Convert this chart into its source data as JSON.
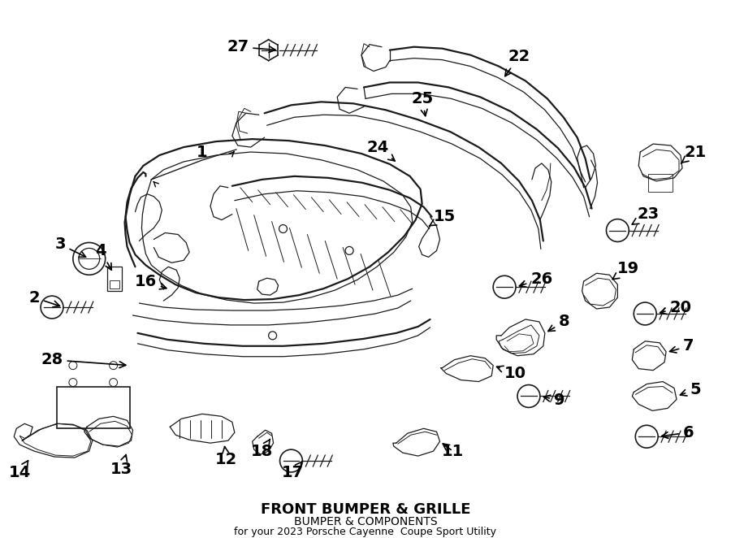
{
  "title": "FRONT BUMPER & GRILLE",
  "subtitle": "BUMPER & COMPONENTS",
  "vehicle": "for your 2023 Porsche Cayenne  Coupe Sport Utility",
  "bg_color": "#ffffff",
  "line_color": "#1a1a1a",
  "lw_main": 1.6,
  "lw_thin": 0.9,
  "lw_med": 1.2,
  "label_fontsize": 14,
  "figw": 9.0,
  "figh": 6.62,
  "dpi": 100,
  "xlim": [
    0,
    900
  ],
  "ylim": [
    0,
    662
  ]
}
